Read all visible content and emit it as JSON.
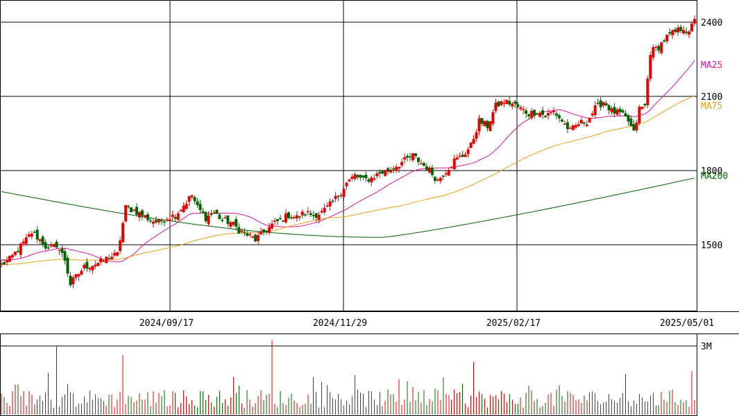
{
  "chart_data": [
    {
      "type": "candlestick",
      "title": "",
      "y_ticks": [
        1500,
        1800,
        2100,
        2400
      ],
      "ylim": [
        1230,
        2490
      ],
      "x_tick_labels": [
        "2024/09/17",
        "2024/11/29",
        "2025/02/17",
        "2025/05/01"
      ],
      "legend": [
        {
          "name": "MA25",
          "color": "#e0149b",
          "value": 2240
        },
        {
          "name": "MA75",
          "color": "#e8a21a",
          "value": 2065
        },
        {
          "name": "MA200",
          "color": "#006400",
          "value": 1770
        }
      ],
      "colors": {
        "up": "#e60000",
        "down": "#006400",
        "grid": "#000000"
      },
      "price_anchors": [
        [
          0,
          1420
        ],
        [
          3,
          1440
        ],
        [
          6,
          1480
        ],
        [
          9,
          1520
        ],
        [
          11,
          1550
        ],
        [
          14,
          1520
        ],
        [
          17,
          1480
        ],
        [
          20,
          1500
        ],
        [
          23,
          1440
        ],
        [
          25,
          1340
        ],
        [
          27,
          1370
        ],
        [
          30,
          1410
        ],
        [
          33,
          1420
        ],
        [
          36,
          1430
        ],
        [
          39,
          1450
        ],
        [
          42,
          1460
        ],
        [
          45,
          1650
        ],
        [
          48,
          1640
        ],
        [
          51,
          1620
        ],
        [
          54,
          1600
        ],
        [
          57,
          1590
        ],
        [
          60,
          1610
        ],
        [
          63,
          1620
        ],
        [
          66,
          1660
        ],
        [
          69,
          1700
        ],
        [
          71,
          1650
        ],
        [
          74,
          1610
        ],
        [
          77,
          1630
        ],
        [
          80,
          1600
        ],
        [
          83,
          1590
        ],
        [
          86,
          1560
        ],
        [
          89,
          1540
        ],
        [
          92,
          1520
        ],
        [
          95,
          1550
        ],
        [
          98,
          1580
        ],
        [
          101,
          1600
        ],
        [
          104,
          1620
        ],
        [
          107,
          1610
        ],
        [
          110,
          1630
        ],
        [
          113,
          1620
        ],
        [
          116,
          1630
        ],
        [
          119,
          1660
        ],
        [
          122,
          1700
        ],
        [
          125,
          1750
        ],
        [
          128,
          1780
        ],
        [
          131,
          1760
        ],
        [
          134,
          1770
        ],
        [
          137,
          1790
        ],
        [
          140,
          1800
        ],
        [
          143,
          1820
        ],
        [
          146,
          1840
        ],
        [
          149,
          1860
        ],
        [
          152,
          1830
        ],
        [
          155,
          1800
        ],
        [
          158,
          1760
        ],
        [
          161,
          1800
        ],
        [
          164,
          1840
        ],
        [
          167,
          1860
        ],
        [
          170,
          1900
        ],
        [
          173,
          2000
        ],
        [
          176,
          1980
        ],
        [
          179,
          2060
        ],
        [
          182,
          2080
        ],
        [
          185,
          2070
        ],
        [
          188,
          2050
        ],
        [
          191,
          2030
        ],
        [
          194,
          2040
        ],
        [
          197,
          2020
        ],
        [
          200,
          2040
        ],
        [
          203,
          2000
        ],
        [
          206,
          1960
        ],
        [
          209,
          1990
        ],
        [
          212,
          2000
        ],
        [
          215,
          2050
        ],
        [
          218,
          2080
        ],
        [
          221,
          2040
        ],
        [
          224,
          2030
        ],
        [
          227,
          2000
        ],
        [
          229,
          1950
        ],
        [
          231,
          2050
        ],
        [
          233,
          2060
        ],
        [
          235,
          2280
        ],
        [
          238,
          2300
        ],
        [
          241,
          2340
        ],
        [
          244,
          2360
        ],
        [
          247,
          2380
        ],
        [
          249,
          2350
        ],
        [
          251,
          2420
        ]
      ]
    },
    {
      "type": "bar",
      "title": "",
      "series": [
        {
          "name": "",
          "color_up": "#e60000",
          "color_down": "#006400"
        }
      ],
      "y_ticks": [
        "3M"
      ],
      "tick_value": 3000000,
      "ylim": [
        0,
        3500000
      ],
      "peaks": [
        [
          82,
          3000000
        ],
        [
          177,
          3250000
        ],
        [
          178,
          2600000
        ],
        [
          392,
          3250000
        ],
        [
          682,
          2300000
        ],
        [
          997,
          1900000
        ]
      ]
    }
  ]
}
